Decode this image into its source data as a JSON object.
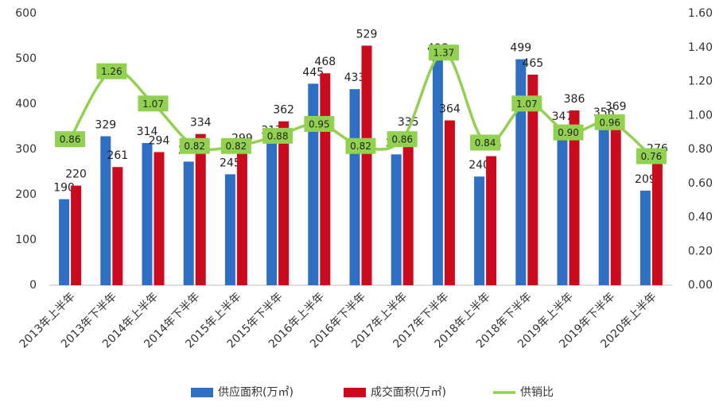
{
  "chart_data": {
    "type": "bar",
    "categories": [
      "2013年上半年",
      "2013年下半年",
      "2014年上半年",
      "2014年下半年",
      "2015年上半年",
      "2015年下半年",
      "2016年上半年",
      "2016年下半年",
      "2017年上半年",
      "2017年下半年",
      "2018年上半年",
      "2018年下半年",
      "2019年上半年",
      "2019年下半年",
      "2020年上半年"
    ],
    "series": [
      {
        "name": "供应面积(万㎡)",
        "color": "#2e6fc4",
        "values": [
          190,
          329,
          314,
          273,
          245,
          317,
          445,
          433,
          289,
          498,
          240,
          499,
          347,
          356,
          209
        ]
      },
      {
        "name": "成交面积(万㎡)",
        "color": "#cc0a1e",
        "values": [
          220,
          261,
          294,
          334,
          299,
          362,
          468,
          529,
          335,
          364,
          285,
          465,
          386,
          369,
          276
        ]
      },
      {
        "name": "供销比",
        "color": "#92d050",
        "type": "line",
        "axis": "y2",
        "values": [
          0.86,
          1.26,
          1.07,
          0.82,
          0.82,
          0.88,
          0.95,
          0.82,
          0.86,
          1.37,
          0.84,
          1.07,
          0.9,
          0.96,
          0.76
        ],
        "value_labels": [
          "0.86",
          "1.26",
          "1.07",
          "0.82",
          "0.82",
          "0.88",
          "0.95",
          "0.82",
          "0.86",
          "1.37",
          "0.84",
          "1.07",
          "0.90",
          "0.96",
          "0.76"
        ]
      }
    ],
    "ylim": [
      0,
      600
    ],
    "yticks": [
      0,
      100,
      200,
      300,
      400,
      500,
      600
    ],
    "y2lim": [
      0,
      1.6
    ],
    "y2ticks": [
      {
        "value": 0,
        "label": "0.00"
      },
      {
        "value": 0.2,
        "label": "0.20"
      },
      {
        "value": 0.4,
        "label": "0.40"
      },
      {
        "value": 0.6,
        "label": "0.60"
      },
      {
        "value": 0.8,
        "label": "0.80"
      },
      {
        "value": 1,
        "label": "1.00"
      },
      {
        "value": 1.2,
        "label": "1.20"
      },
      {
        "value": 1.4,
        "label": "1.40"
      },
      {
        "value": 1.6,
        "label": "1.60"
      }
    ],
    "grid": false,
    "legend": "bottom"
  }
}
